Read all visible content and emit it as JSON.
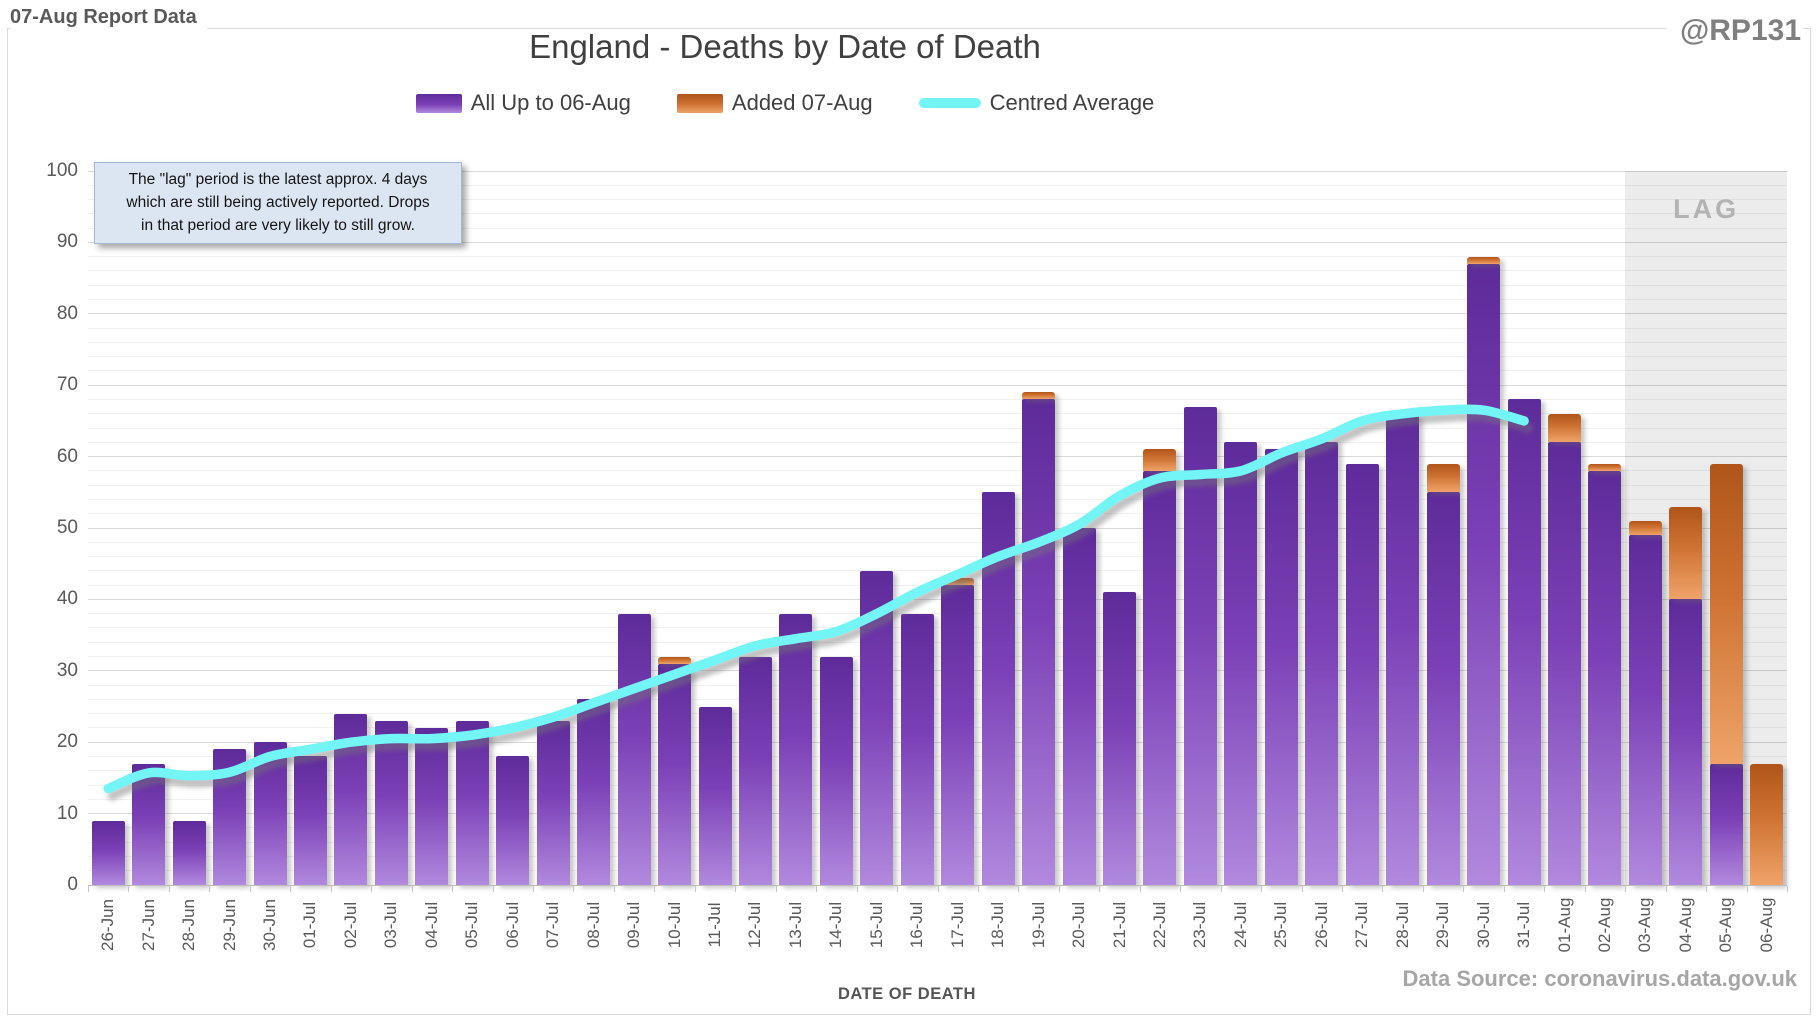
{
  "header": {
    "report_label": "07-Aug Report Data",
    "handle": "@RP131",
    "title": "England - Deaths by Date of Death"
  },
  "legend": {
    "items": [
      {
        "label": "All Up to 06-Aug",
        "swatch": "purple-bar-swatch"
      },
      {
        "label": "Added 07-Aug",
        "swatch": "orange-bar-swatch"
      },
      {
        "label": "Centred Average",
        "swatch": "cyan-line-swatch"
      }
    ]
  },
  "annotation": {
    "lines": [
      "The \"lag\" period is the latest approx. 4 days",
      "which are still being actively reported. Drops",
      "in that period are very likely to still grow."
    ]
  },
  "lag": {
    "label": "LAG"
  },
  "axes": {
    "x_title": "DATE OF DEATH",
    "y_ticks": [
      0,
      10,
      20,
      30,
      40,
      50,
      60,
      70,
      80,
      90,
      100
    ]
  },
  "footer": {
    "data_source": "Data Source: coronavirus.data.gov.uk"
  },
  "chart_data": {
    "type": "bar",
    "title": "England - Deaths by Date of Death",
    "xlabel": "DATE OF DEATH",
    "ylabel": "",
    "ylim": [
      0,
      100
    ],
    "y_major_unit": 10,
    "y_minor_unit": 2,
    "legend_position": "top",
    "categories": [
      "26-Jun",
      "27-Jun",
      "28-Jun",
      "29-Jun",
      "30-Jun",
      "01-Jul",
      "02-Jul",
      "03-Jul",
      "04-Jul",
      "05-Jul",
      "06-Jul",
      "07-Jul",
      "08-Jul",
      "09-Jul",
      "10-Jul",
      "11-Jul",
      "12-Jul",
      "13-Jul",
      "14-Jul",
      "15-Jul",
      "16-Jul",
      "17-Jul",
      "18-Jul",
      "19-Jul",
      "20-Jul",
      "21-Jul",
      "22-Jul",
      "23-Jul",
      "24-Jul",
      "25-Jul",
      "26-Jul",
      "27-Jul",
      "28-Jul",
      "29-Jul",
      "30-Jul",
      "31-Jul",
      "01-Aug",
      "02-Aug",
      "03-Aug",
      "04-Aug",
      "05-Aug",
      "06-Aug"
    ],
    "series": [
      {
        "name": "All Up to 06-Aug",
        "type": "bar",
        "stack": "deaths",
        "color_top": "#5e2b9a",
        "color_mid": "#7b40b6",
        "color_bottom": "#b189de",
        "values": [
          9,
          17,
          9,
          19,
          20,
          18,
          24,
          23,
          22,
          23,
          18,
          23,
          26,
          38,
          31,
          25,
          32,
          38,
          32,
          44,
          38,
          42,
          55,
          68,
          50,
          41,
          58,
          67,
          62,
          61,
          62,
          59,
          66,
          55,
          87,
          68,
          62,
          58,
          49,
          40,
          17,
          0
        ]
      },
      {
        "name": "Added 07-Aug",
        "type": "bar",
        "stack": "deaths",
        "color_top": "#b0551a",
        "color_mid": "#cf7334",
        "color_bottom": "#efa369",
        "values": [
          0,
          0,
          0,
          0,
          0,
          0,
          0,
          0,
          0,
          0,
          0,
          0,
          0,
          0,
          1,
          0,
          0,
          0,
          0,
          0,
          0,
          1,
          0,
          1,
          0,
          0,
          3,
          0,
          0,
          0,
          0,
          0,
          0,
          4,
          1,
          0,
          4,
          1,
          2,
          13,
          42,
          17
        ]
      },
      {
        "name": "Centred Average",
        "type": "line",
        "color": "#72f5f4",
        "values": [
          13.5,
          15.7,
          15.3,
          15.8,
          18,
          19,
          20,
          20.5,
          20.5,
          21,
          22,
          23.5,
          25.5,
          27.5,
          29.5,
          31.5,
          33.5,
          34.5,
          35.5,
          38,
          41,
          43.5,
          46,
          48,
          50.5,
          54.5,
          57,
          57.5,
          58,
          60.5,
          62.5,
          65,
          66,
          66.5,
          66.5,
          65,
          null,
          null,
          null,
          null,
          null,
          null
        ]
      }
    ],
    "lag_region": {
      "start_category": "03-Aug",
      "end_category": "06-Aug",
      "label": "LAG"
    }
  }
}
